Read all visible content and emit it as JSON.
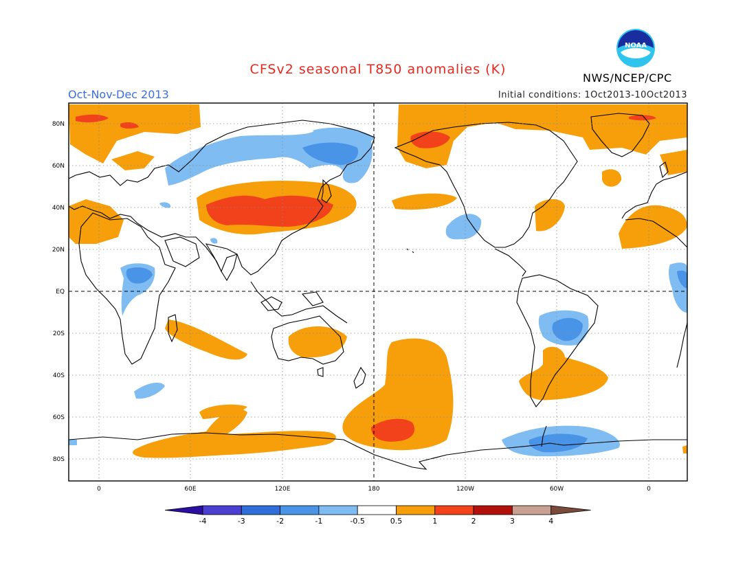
{
  "title": "CFSv2 seasonal T850 anomalies (K)",
  "period": "Oct-Nov-Dec 2013",
  "initial_conditions": "Initial conditions: 1Oct2013-10Oct2013",
  "agency": "NWS/NCEP/CPC",
  "logo_text": "NOAA",
  "lat_labels": [
    "80N",
    "60N",
    "40N",
    "20N",
    "EQ",
    "20S",
    "40S",
    "60S",
    "80S"
  ],
  "lon_labels": [
    "0",
    "60E",
    "120E",
    "180",
    "120W",
    "60W",
    "0"
  ],
  "colorbar": {
    "tick_labels": [
      "-4",
      "-3",
      "-2",
      "-1",
      "-0.5",
      "0.5",
      "1",
      "2",
      "3",
      "4"
    ],
    "colors": [
      "#2b0fa0",
      "#4a3fd0",
      "#2f6ed8",
      "#4a94e8",
      "#7fbcf2",
      "#ffffff",
      "#f79f0a",
      "#f2421c",
      "#b2100a",
      "#c9a192",
      "#7a4a3a"
    ]
  },
  "legend": {
    "warm_moderate": "#f79f0a",
    "warm_strong": "#f2421c",
    "cool_light": "#7fbcf2",
    "cool_moderate": "#4a94e8"
  }
}
